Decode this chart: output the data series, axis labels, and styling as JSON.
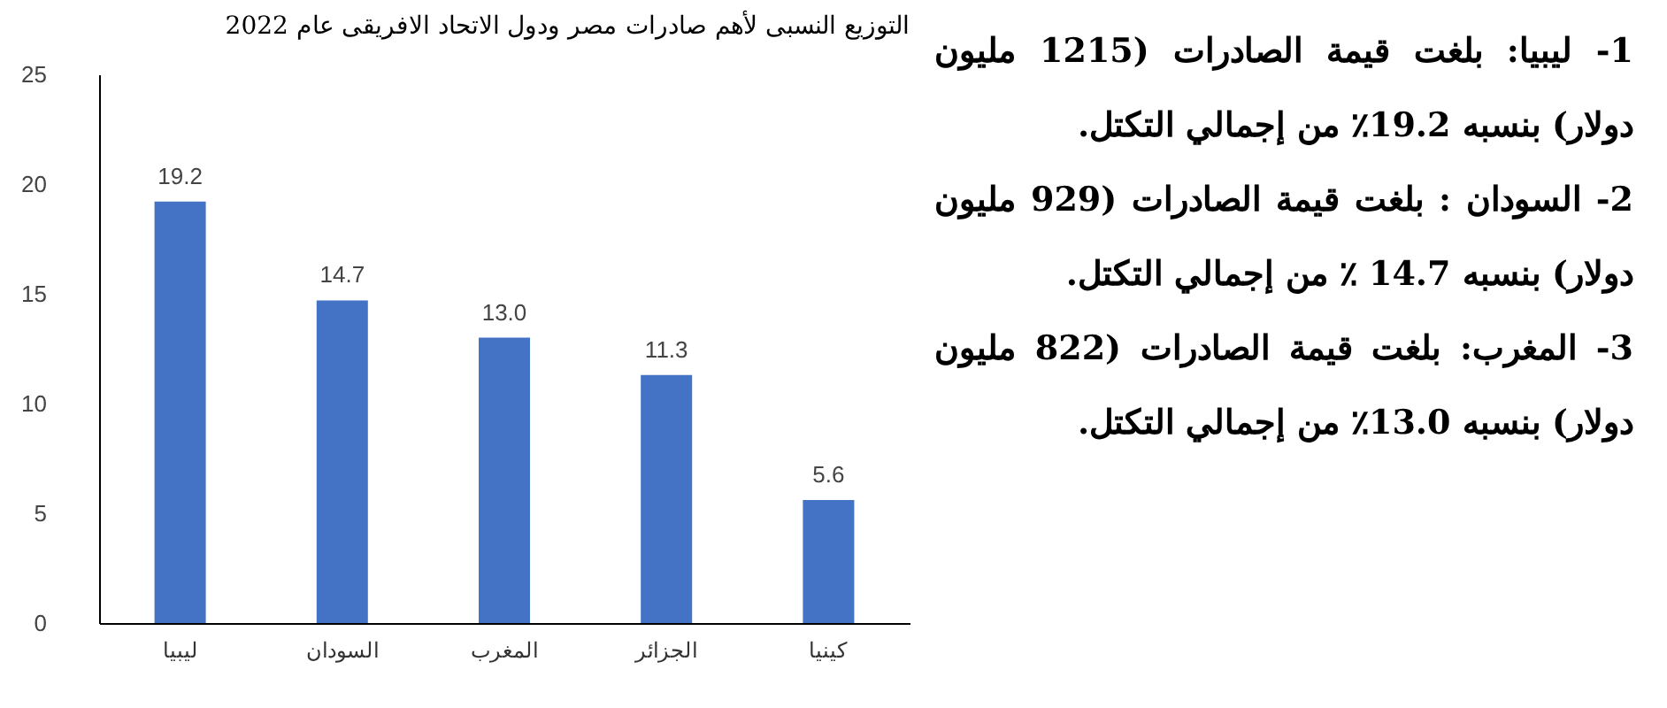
{
  "chart_data": {
    "type": "bar",
    "title": "التوزيع النسبى لأهم صادرات مصر ودول الاتحاد الافريقى عام 2022",
    "categories": [
      "ليبيا",
      "السودان",
      "المغرب",
      "الجزائر",
      "كينيا"
    ],
    "values": [
      19.2,
      14.7,
      13.0,
      11.3,
      5.6
    ],
    "value_labels": [
      "19.2",
      "14.7",
      "13.0",
      "11.3",
      "5.6"
    ],
    "color": "#4472c4",
    "ylim": [
      0,
      25
    ],
    "yticks": [
      0,
      5,
      10,
      15,
      20,
      25
    ],
    "grid": false,
    "annotations": [
      "1- ليبيا: بلغت قيمة الصادرات (1215 مليون دولار) بنسبه 19.2٪ من إجمالي التكتل.",
      "2- السودان : بلغت قيمة الصادرات (929 مليون دولار) بنسبه 14.7 ٪ من إجمالي التكتل.",
      "3- المغرب: بلغت قيمة الصادرات (822 مليون دولار) بنسبه 13.0٪ من إجمالي التكتل."
    ]
  }
}
